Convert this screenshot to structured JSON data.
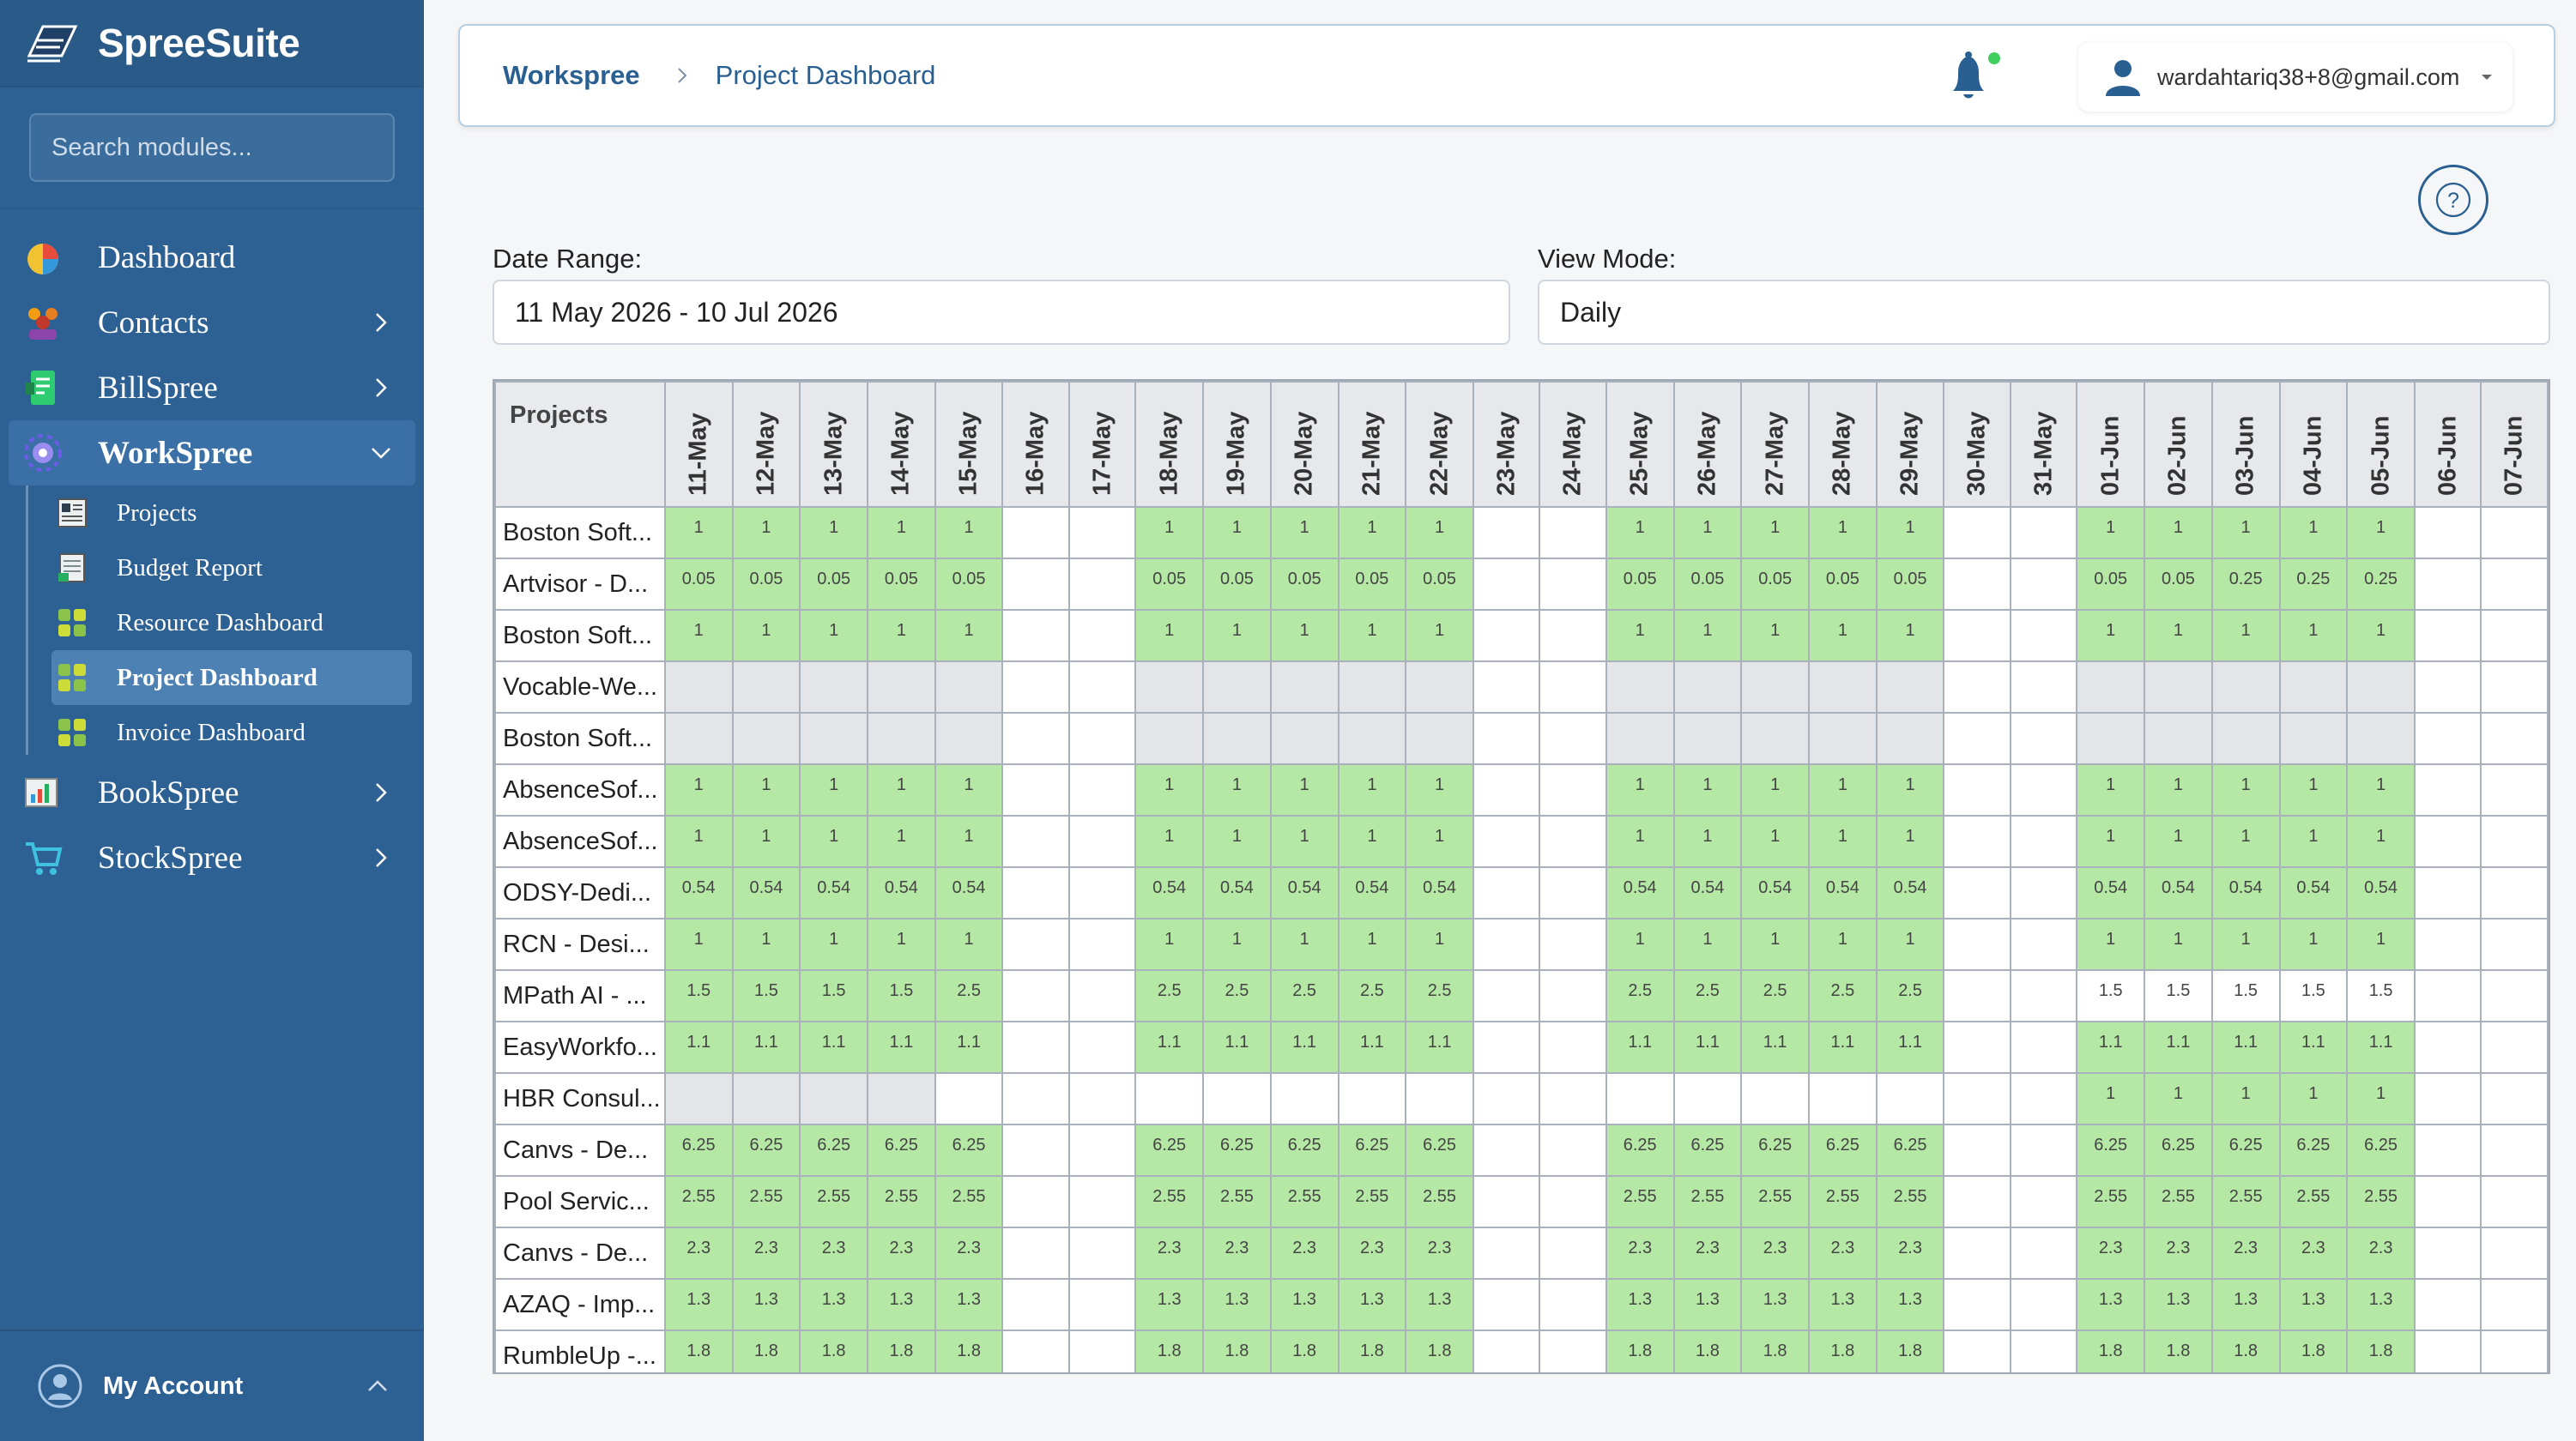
{
  "brand": {
    "name": "SpreeSuite"
  },
  "search": {
    "placeholder": "Search modules..."
  },
  "nav": {
    "dashboard": "Dashboard",
    "contacts": "Contacts",
    "billspree": "BillSpree",
    "workspree": "WorkSpree",
    "bookspree": "BookSpree",
    "stockspree": "StockSpree"
  },
  "subnav": {
    "projects": "Projects",
    "budget_report": "Budget Report",
    "resource_dashboard": "Resource Dashboard",
    "project_dashboard": "Project Dashboard",
    "invoice_dashboard": "Invoice Dashboard"
  },
  "account": {
    "label": "My Account"
  },
  "header": {
    "breadcrumb_root": "Workspree",
    "breadcrumb_current": "Project Dashboard",
    "user_email": "wardahtariq38+8@gmail.com"
  },
  "help": {
    "symbol": "?"
  },
  "filters": {
    "date_range_label": "Date Range:",
    "date_range_value": "11 May 2026 - 10 Jul 2026",
    "view_mode_label": "View Mode:",
    "view_mode_value": "Daily"
  },
  "table": {
    "project_header": "Projects",
    "dates": [
      "11-May",
      "12-May",
      "13-May",
      "14-May",
      "15-May",
      "16-May",
      "17-May",
      "18-May",
      "19-May",
      "20-May",
      "21-May",
      "22-May",
      "23-May",
      "24-May",
      "25-May",
      "26-May",
      "27-May",
      "28-May",
      "29-May",
      "30-May",
      "31-May",
      "01-Jun",
      "02-Jun",
      "03-Jun",
      "04-Jun",
      "05-Jun",
      "06-Jun",
      "07-Jun"
    ],
    "weekend_index": [
      5,
      6,
      12,
      13,
      19,
      20,
      26,
      27
    ],
    "rows": [
      {
        "name": "Boston Soft...",
        "v": [
          "1",
          "1",
          "1",
          "1",
          "1",
          null,
          null,
          "1",
          "1",
          "1",
          "1",
          "1",
          null,
          null,
          "1",
          "1",
          "1",
          "1",
          "1",
          null,
          null,
          "1",
          "1",
          "1",
          "1",
          "1",
          null,
          null
        ],
        "t": "g"
      },
      {
        "name": "Artvisor - D...",
        "v": [
          "0.05",
          "0.05",
          "0.05",
          "0.05",
          "0.05",
          null,
          null,
          "0.05",
          "0.05",
          "0.05",
          "0.05",
          "0.05",
          null,
          null,
          "0.05",
          "0.05",
          "0.05",
          "0.05",
          "0.05",
          null,
          null,
          "0.05",
          "0.05",
          "0.25",
          "0.25",
          "0.25",
          null,
          null
        ],
        "t": "g"
      },
      {
        "name": "Boston Soft...",
        "v": [
          "1",
          "1",
          "1",
          "1",
          "1",
          null,
          null,
          "1",
          "1",
          "1",
          "1",
          "1",
          null,
          null,
          "1",
          "1",
          "1",
          "1",
          "1",
          null,
          null,
          "1",
          "1",
          "1",
          "1",
          "1",
          null,
          null
        ],
        "t": "g"
      },
      {
        "name": "Vocable-We...",
        "v": [
          "",
          "",
          "",
          "",
          "",
          null,
          null,
          "",
          "",
          "",
          "",
          "",
          null,
          null,
          "",
          "",
          "",
          "",
          "",
          null,
          null,
          "",
          "",
          "",
          "",
          "",
          null,
          null
        ],
        "t": "x"
      },
      {
        "name": "Boston Soft...",
        "v": [
          "",
          "",
          "",
          "",
          "",
          null,
          null,
          "",
          "",
          "",
          "",
          "",
          null,
          null,
          "",
          "",
          "",
          "",
          "",
          null,
          null,
          "",
          "",
          "",
          "",
          "",
          null,
          null
        ],
        "t": "x"
      },
      {
        "name": "AbsenceSof...",
        "v": [
          "1",
          "1",
          "1",
          "1",
          "1",
          null,
          null,
          "1",
          "1",
          "1",
          "1",
          "1",
          null,
          null,
          "1",
          "1",
          "1",
          "1",
          "1",
          null,
          null,
          "1",
          "1",
          "1",
          "1",
          "1",
          null,
          null
        ],
        "t": "g"
      },
      {
        "name": "AbsenceSof...",
        "v": [
          "1",
          "1",
          "1",
          "1",
          "1",
          null,
          null,
          "1",
          "1",
          "1",
          "1",
          "1",
          null,
          null,
          "1",
          "1",
          "1",
          "1",
          "1",
          null,
          null,
          "1",
          "1",
          "1",
          "1",
          "1",
          null,
          null
        ],
        "t": "g"
      },
      {
        "name": "ODSY-Dedi...",
        "v": [
          "0.54",
          "0.54",
          "0.54",
          "0.54",
          "0.54",
          null,
          null,
          "0.54",
          "0.54",
          "0.54",
          "0.54",
          "0.54",
          null,
          null,
          "0.54",
          "0.54",
          "0.54",
          "0.54",
          "0.54",
          null,
          null,
          "0.54",
          "0.54",
          "0.54",
          "0.54",
          "0.54",
          null,
          null
        ],
        "t": "g"
      },
      {
        "name": "RCN - Desi...",
        "v": [
          "1",
          "1",
          "1",
          "1",
          "1",
          null,
          null,
          "1",
          "1",
          "1",
          "1",
          "1",
          null,
          null,
          "1",
          "1",
          "1",
          "1",
          "1",
          null,
          null,
          "1",
          "1",
          "1",
          "1",
          "1",
          null,
          null
        ],
        "t": "g"
      },
      {
        "name": "MPath AI - ...",
        "v": [
          "1.5",
          "1.5",
          "1.5",
          "1.5",
          "2.5",
          null,
          null,
          "2.5",
          "2.5",
          "2.5",
          "2.5",
          "2.5",
          null,
          null,
          "2.5",
          "2.5",
          "2.5",
          "2.5",
          "2.5",
          null,
          null,
          "1.5",
          "1.5",
          "1.5",
          "1.5",
          "1.5",
          null,
          null
        ],
        "t": "mpath"
      },
      {
        "name": "EasyWorkfo...",
        "v": [
          "1.1",
          "1.1",
          "1.1",
          "1.1",
          "1.1",
          null,
          null,
          "1.1",
          "1.1",
          "1.1",
          "1.1",
          "1.1",
          null,
          null,
          "1.1",
          "1.1",
          "1.1",
          "1.1",
          "1.1",
          null,
          null,
          "1.1",
          "1.1",
          "1.1",
          "1.1",
          "1.1",
          null,
          null
        ],
        "t": "g"
      },
      {
        "name": "HBR Consul...",
        "v": [
          "",
          "",
          "",
          "",
          "",
          null,
          null,
          "",
          "",
          "",
          "",
          "",
          null,
          null,
          "",
          "",
          "",
          "",
          "",
          null,
          null,
          "1",
          "1",
          "1",
          "1",
          "1",
          null,
          null
        ],
        "t": "hbr"
      },
      {
        "name": "Canvs - De...",
        "v": [
          "6.25",
          "6.25",
          "6.25",
          "6.25",
          "6.25",
          null,
          null,
          "6.25",
          "6.25",
          "6.25",
          "6.25",
          "6.25",
          null,
          null,
          "6.25",
          "6.25",
          "6.25",
          "6.25",
          "6.25",
          null,
          null,
          "6.25",
          "6.25",
          "6.25",
          "6.25",
          "6.25",
          null,
          null
        ],
        "t": "g"
      },
      {
        "name": "Pool Servic...",
        "v": [
          "2.55",
          "2.55",
          "2.55",
          "2.55",
          "2.55",
          null,
          null,
          "2.55",
          "2.55",
          "2.55",
          "2.55",
          "2.55",
          null,
          null,
          "2.55",
          "2.55",
          "2.55",
          "2.55",
          "2.55",
          null,
          null,
          "2.55",
          "2.55",
          "2.55",
          "2.55",
          "2.55",
          null,
          null
        ],
        "t": "g"
      },
      {
        "name": "Canvs - De...",
        "v": [
          "2.3",
          "2.3",
          "2.3",
          "2.3",
          "2.3",
          null,
          null,
          "2.3",
          "2.3",
          "2.3",
          "2.3",
          "2.3",
          null,
          null,
          "2.3",
          "2.3",
          "2.3",
          "2.3",
          "2.3",
          null,
          null,
          "2.3",
          "2.3",
          "2.3",
          "2.3",
          "2.3",
          null,
          null
        ],
        "t": "g"
      },
      {
        "name": "AZAQ - Imp...",
        "v": [
          "1.3",
          "1.3",
          "1.3",
          "1.3",
          "1.3",
          null,
          null,
          "1.3",
          "1.3",
          "1.3",
          "1.3",
          "1.3",
          null,
          null,
          "1.3",
          "1.3",
          "1.3",
          "1.3",
          "1.3",
          null,
          null,
          "1.3",
          "1.3",
          "1.3",
          "1.3",
          "1.3",
          null,
          null
        ],
        "t": "g"
      },
      {
        "name": "RumbleUp -...",
        "v": [
          "1.8",
          "1.8",
          "1.8",
          "1.8",
          "1.8",
          null,
          null,
          "1.8",
          "1.8",
          "1.8",
          "1.8",
          "1.8",
          null,
          null,
          "1.8",
          "1.8",
          "1.8",
          "1.8",
          "1.8",
          null,
          null,
          "1.8",
          "1.8",
          "1.8",
          "1.8",
          "1.8",
          null,
          null
        ],
        "t": "g"
      }
    ]
  },
  "colors": {
    "sidebar": "#2e6193",
    "cell_green": "#b6e8a5",
    "cell_grey": "#e3e5e8",
    "over_alloc": "#c0392b",
    "accent": "#2a5f91"
  }
}
